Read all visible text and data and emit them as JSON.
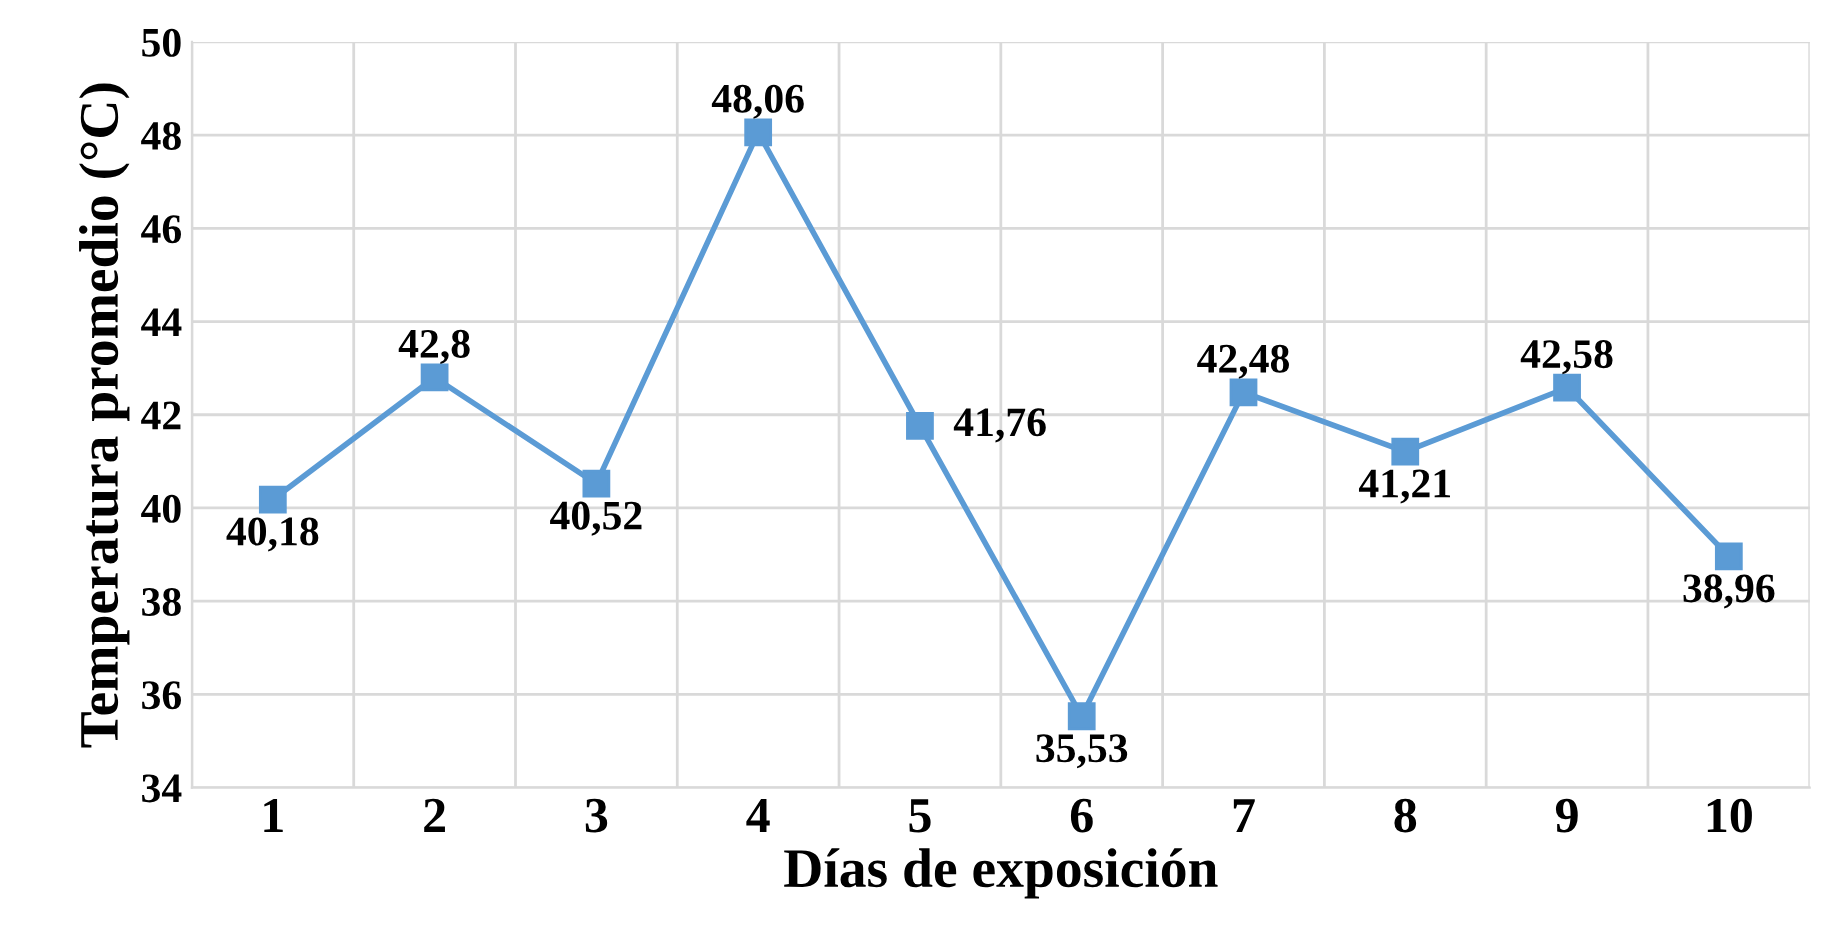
{
  "chart_data": {
    "type": "line",
    "xlabel": "Días de exposición",
    "ylabel": "Temperatura promedio (°C)",
    "categories": [
      "1",
      "2",
      "3",
      "4",
      "5",
      "6",
      "7",
      "8",
      "9",
      "10"
    ],
    "series": [
      {
        "color": "#5b9bd5",
        "values": [
          40.18,
          42.8,
          40.52,
          48.06,
          41.76,
          35.53,
          42.48,
          41.21,
          42.58,
          38.96
        ],
        "value_labels": [
          "40,18",
          "42,8",
          "40,52",
          "48,06",
          "41,76",
          "35,53",
          "42,48",
          "41,21",
          "42,58",
          "38,96"
        ]
      }
    ],
    "ylim": [
      34,
      50
    ],
    "yticks": [
      34,
      36,
      38,
      40,
      42,
      44,
      46,
      48,
      50
    ],
    "grid": true,
    "marker": "square",
    "line_style": "solid"
  }
}
